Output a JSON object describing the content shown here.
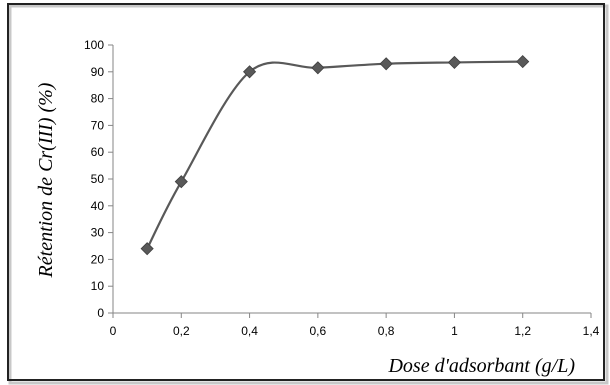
{
  "chart_data": {
    "type": "line",
    "title": "",
    "xlabel": "Dose d'adsorbant (g/L)",
    "ylabel": "Rétention de Cr(III)  (%)",
    "xlim": [
      0,
      1.4
    ],
    "ylim": [
      0,
      100
    ],
    "x_ticks": [
      "0",
      "0,2",
      "0,4",
      "0,6",
      "0,8",
      "1",
      "1,2",
      "1,4"
    ],
    "y_ticks": [
      "0",
      "10",
      "20",
      "30",
      "40",
      "50",
      "60",
      "70",
      "80",
      "90",
      "100"
    ],
    "grid": false,
    "legend": false,
    "smooth": true,
    "marker": "diamond",
    "series": [
      {
        "color": "#595959",
        "x": [
          0.1,
          0.2,
          0.4,
          0.6,
          0.8,
          1.0,
          1.2
        ],
        "y": [
          24,
          49,
          90,
          91.5,
          93,
          93.5,
          93.8
        ]
      }
    ]
  }
}
